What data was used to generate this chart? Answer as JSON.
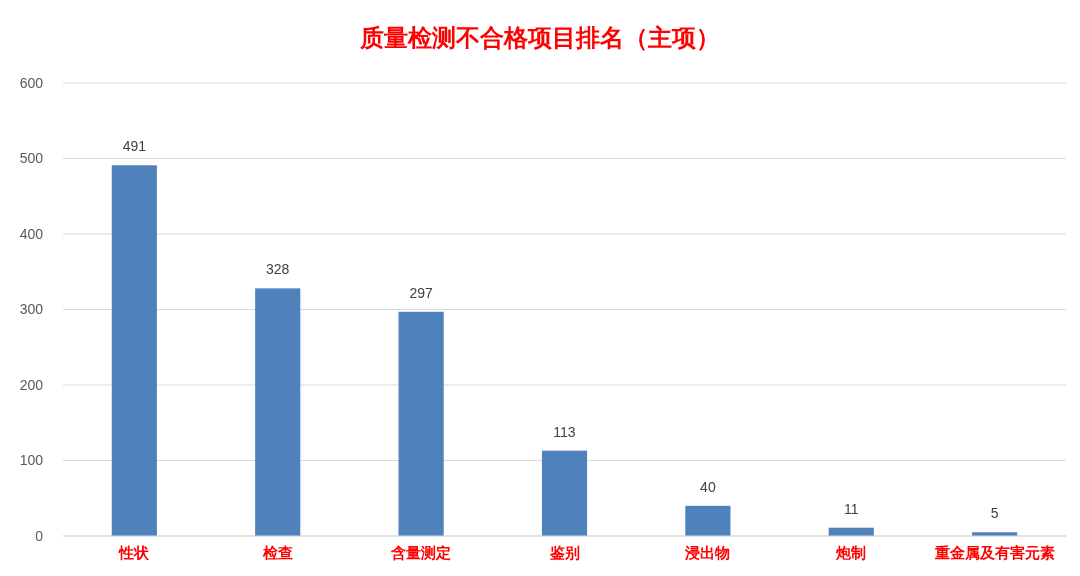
{
  "chart_data": {
    "type": "bar",
    "title": "质量检测不合格项目排名（主项）",
    "categories": [
      "性状",
      "检查",
      "含量测定",
      "鉴别",
      "浸出物",
      "炮制",
      "重金属及有害元素"
    ],
    "values": [
      491,
      328,
      297,
      113,
      40,
      11,
      5
    ],
    "color": "#4f81bd",
    "ylim": [
      0,
      600
    ],
    "yticks": [
      0,
      100,
      200,
      300,
      400,
      500,
      600
    ],
    "grid": "y",
    "data_labels": true
  }
}
